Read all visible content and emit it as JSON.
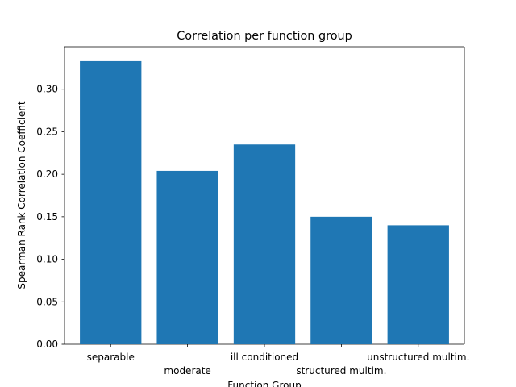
{
  "chart_data": {
    "type": "bar",
    "title": "Correlation per function group",
    "xlabel": "Function Group",
    "ylabel": "Spearman Rank Correlation Coefficient",
    "categories": [
      "separable",
      "moderate",
      "ill conditioned",
      "structured multim.",
      "unstructured multim."
    ],
    "values": [
      0.333,
      0.204,
      0.235,
      0.15,
      0.14
    ],
    "ylim": [
      0,
      0.35
    ],
    "yticks": [
      0.0,
      0.05,
      0.1,
      0.15,
      0.2,
      0.25,
      0.3
    ],
    "ytick_labels": [
      "0.00",
      "0.05",
      "0.10",
      "0.15",
      "0.20",
      "0.25",
      "0.30"
    ],
    "bar_color": "#1f77b4",
    "grid": false,
    "legend": "none"
  }
}
